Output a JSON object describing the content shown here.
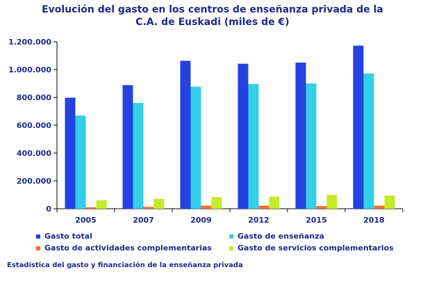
{
  "chart_data": {
    "type": "bar",
    "title_lines": [
      "Evolución  del gasto en los  centros de enseñanza privada de la",
      "C.A. de Euskadi  (miles  de €)"
    ],
    "categories": [
      "2005",
      "2007",
      "2009",
      "2012",
      "2015",
      "2018"
    ],
    "ylim": [
      0,
      1200000
    ],
    "yticks": [
      0,
      200000,
      400000,
      600000,
      800000,
      1000000,
      1200000
    ],
    "ytick_labels": [
      "0",
      "200.000",
      "400.000",
      "600.000",
      "800.000",
      "1.000.000",
      "1.200.000"
    ],
    "grid": false,
    "legend_position": "bottom",
    "series": [
      {
        "name": "Gasto total",
        "color": "#2342e0",
        "values": [
          798000,
          888000,
          1063000,
          1042000,
          1050000,
          1172000
        ]
      },
      {
        "name": "Gasto de enseñanza",
        "color": "#33cfe8",
        "values": [
          670000,
          760000,
          877000,
          896000,
          900000,
          972000
        ]
      },
      {
        "name": "Gasto de actividades complementarias",
        "color": "#f07030",
        "values": [
          10000,
          13000,
          22000,
          22000,
          19000,
          22000
        ]
      },
      {
        "name": "Gasto de servicios complementarios",
        "color": "#c6ea2a",
        "values": [
          62000,
          71000,
          83000,
          87000,
          100000,
          95000
        ]
      }
    ]
  },
  "footer": "Estadística del gasto y financiación de la enseñanza privada"
}
